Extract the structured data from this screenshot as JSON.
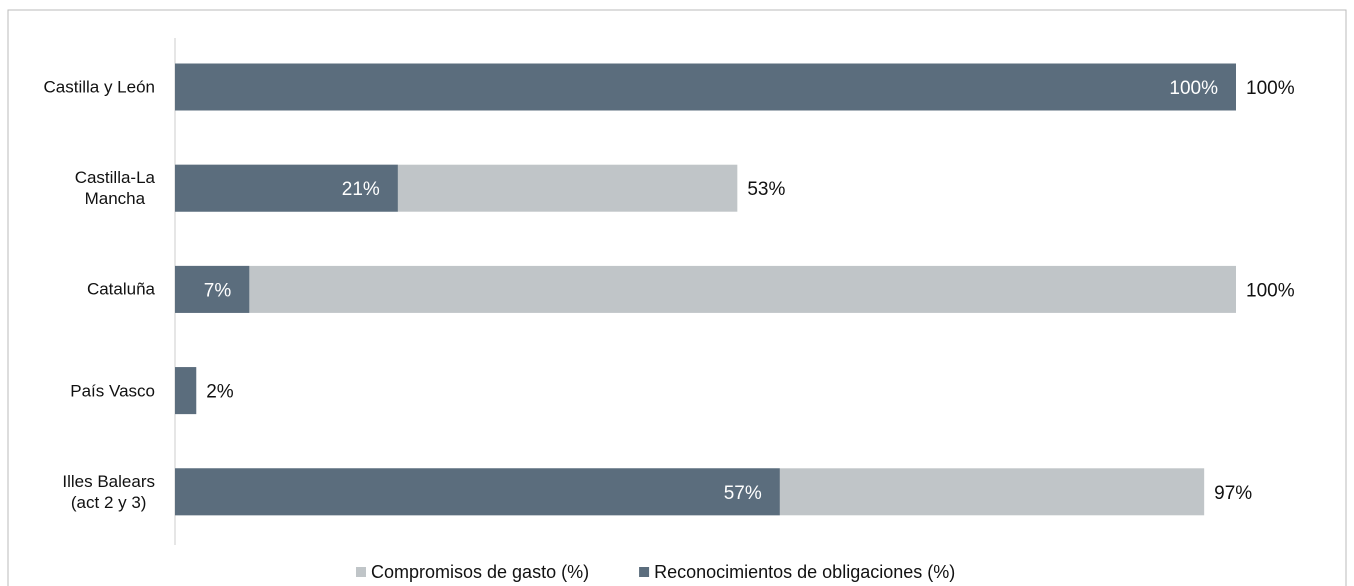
{
  "chart_data": {
    "type": "bar",
    "orientation": "horizontal",
    "overlap": true,
    "categories": [
      "Castilla y León",
      "Castilla-La\nMancha",
      "Cataluña",
      "País Vasco",
      "Illes Balears\n(act 2 y 3)"
    ],
    "series": [
      {
        "name": "Compromisos de gasto (%)",
        "color": "#c0c5c8",
        "values": [
          100,
          53,
          100,
          2,
          97
        ],
        "value_labels": [
          "100%",
          "53%",
          "100%",
          "2%",
          "97%"
        ]
      },
      {
        "name": "Reconocimientos de obligaciones (%)",
        "color": "#5b6d7d",
        "values": [
          100,
          21,
          7,
          2,
          57
        ],
        "value_labels": [
          "100%",
          "21%",
          "7%",
          null,
          "57%"
        ]
      }
    ],
    "xlim": [
      0,
      100
    ],
    "legend": "bottom"
  }
}
